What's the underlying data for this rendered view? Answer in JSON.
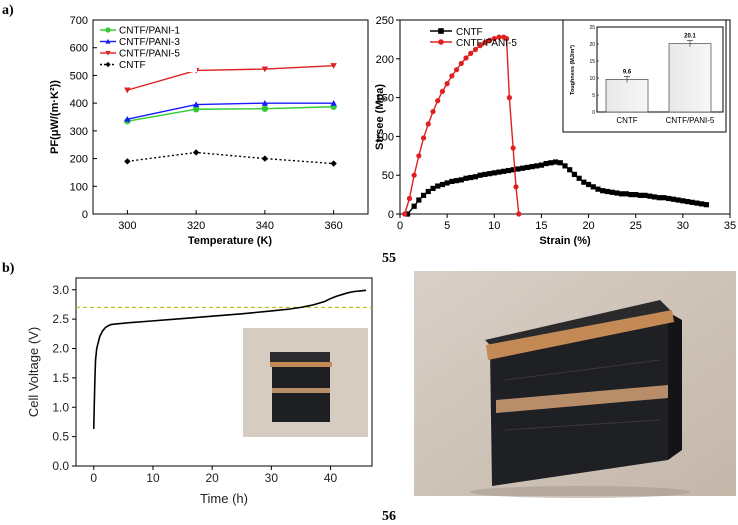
{
  "panels": {
    "a": "a)",
    "b": "b)"
  },
  "figure_numbers": {
    "top": "55",
    "bottom": "56"
  },
  "chart_data": [
    {
      "type": "line",
      "xlabel": "Temperature (K)",
      "ylabel": "PF(μW/(m·K²))",
      "xticks": [
        300,
        320,
        340,
        360
      ],
      "yticks": [
        0,
        100,
        200,
        300,
        400,
        500,
        600,
        700
      ],
      "xlim": [
        290,
        370
      ],
      "ylim": [
        0,
        700
      ],
      "x": [
        300,
        320,
        340,
        360
      ],
      "series": [
        {
          "name": "CNTF/PANI-1",
          "color": "#2ecc2e",
          "marker": "circle",
          "dash": false,
          "values": [
            335,
            378,
            380,
            387
          ]
        },
        {
          "name": "CNTF/PANI-3",
          "color": "#1a1aff",
          "marker": "triangle-up",
          "dash": false,
          "values": [
            342,
            395,
            400,
            400
          ]
        },
        {
          "name": "CNTF/PANI-5",
          "color": "#e02020",
          "marker": "triangle-down",
          "dash": false,
          "values": [
            447,
            518,
            523,
            535
          ]
        },
        {
          "name": "CNTF",
          "color": "#000000",
          "marker": "diamond",
          "dash": true,
          "values": [
            190,
            222,
            200,
            182
          ]
        }
      ]
    },
    {
      "type": "line",
      "xlabel": "Strain (%)",
      "ylabel": "Strsee (Mpa)",
      "xticks": [
        0,
        5,
        10,
        15,
        20,
        25,
        30,
        35
      ],
      "yticks": [
        0,
        50,
        100,
        150,
        200,
        250
      ],
      "xlim": [
        0,
        35
      ],
      "ylim": [
        0,
        250
      ],
      "series": [
        {
          "name": "CNTF",
          "color": "#000000",
          "marker": "square",
          "x": [
            0.8,
            1.5,
            2.0,
            2.5,
            3.0,
            3.5,
            4.0,
            4.5,
            5.0,
            5.5,
            6.0,
            6.5,
            7.0,
            7.5,
            8.0,
            8.5,
            9.0,
            9.5,
            10.0,
            10.5,
            11.0,
            11.5,
            12.0,
            12.5,
            13.0,
            13.5,
            14.0,
            14.5,
            15.0,
            15.5,
            16.0,
            16.5,
            17.0,
            17.5,
            18.0,
            18.5,
            19.0,
            19.5,
            20.0,
            20.5,
            21.0,
            21.5,
            22.0,
            22.5,
            23.0,
            23.5,
            24.0,
            24.5,
            25.0,
            25.5,
            26.0,
            26.5,
            27.0,
            27.5,
            28.0,
            28.5,
            29.0,
            29.5,
            30.0,
            30.5,
            31.0,
            31.5,
            32.0,
            32.5
          ],
          "y": [
            0,
            10,
            18,
            24,
            29,
            33,
            36,
            38,
            40,
            42,
            43,
            44,
            46,
            47,
            48,
            50,
            51,
            52,
            53,
            54,
            55,
            56,
            57,
            58,
            59,
            60,
            61,
            62,
            63,
            65,
            66,
            67,
            66,
            62,
            57,
            51,
            46,
            41,
            38,
            35,
            32,
            30,
            29,
            28,
            27,
            26,
            26,
            25,
            25,
            24,
            24,
            23,
            22,
            21,
            21,
            20,
            19,
            18,
            17,
            16,
            15,
            14,
            13,
            12
          ]
        },
        {
          "name": "CNTF/PANI-5",
          "color": "#e02020",
          "marker": "circle",
          "x": [
            0.5,
            1.0,
            1.5,
            2.0,
            2.5,
            3.0,
            3.5,
            4.0,
            4.5,
            5.0,
            5.5,
            6.0,
            6.5,
            7.0,
            7.5,
            8.0,
            8.5,
            9.0,
            9.5,
            10.0,
            10.5,
            11.0,
            11.3,
            11.6,
            12.0,
            12.3,
            12.6
          ],
          "y": [
            0,
            20,
            50,
            75,
            98,
            116,
            132,
            146,
            158,
            168,
            178,
            186,
            194,
            201,
            207,
            212,
            217,
            221,
            224,
            226,
            228,
            228,
            226,
            150,
            85,
            35,
            0
          ]
        }
      ],
      "inset": {
        "type": "bar",
        "ylabel": "Toughness (MJ/m³)",
        "categories": [
          "CNTF",
          "CNTF/PANI-5"
        ],
        "values": [
          9.6,
          20.1
        ],
        "value_labels": [
          "9.6",
          "20.1"
        ],
        "ylim": [
          0,
          25
        ]
      }
    },
    {
      "type": "line",
      "xlabel": "Time (h)",
      "ylabel": "Cell Voltage (V)",
      "xticks": [
        0,
        10,
        20,
        30,
        40
      ],
      "yticks": [
        "0.0",
        "0.5",
        "1.0",
        "1.5",
        "2.0",
        "2.5",
        "3.0"
      ],
      "xlim": [
        -3,
        47
      ],
      "ylim": [
        0,
        3.2
      ],
      "reference_line": {
        "y": 2.7,
        "color": "#b5b500",
        "style": "dashed"
      },
      "series": [
        {
          "name": "Cell voltage",
          "color": "#000000",
          "x": [
            0,
            0.1,
            0.2,
            0.3,
            0.5,
            0.8,
            1.0,
            1.5,
            2.0,
            2.5,
            3,
            4,
            6,
            10,
            15,
            20,
            25,
            30,
            33,
            35,
            36,
            37,
            38,
            39,
            40,
            41,
            42,
            43,
            44,
            45,
            46
          ],
          "y": [
            0.63,
            1.1,
            1.5,
            1.8,
            2.0,
            2.12,
            2.2,
            2.3,
            2.36,
            2.39,
            2.41,
            2.42,
            2.44,
            2.47,
            2.51,
            2.55,
            2.59,
            2.64,
            2.67,
            2.7,
            2.72,
            2.74,
            2.77,
            2.8,
            2.85,
            2.89,
            2.92,
            2.95,
            2.97,
            2.98,
            2.99
          ]
        }
      ]
    }
  ]
}
